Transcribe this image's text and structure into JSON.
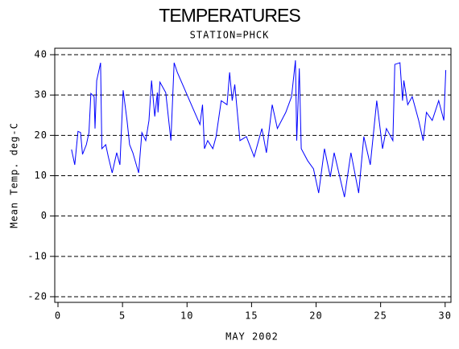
{
  "chart_data": {
    "type": "line",
    "title": "TEMPERATURES",
    "subtitle": "STATION=PHCK",
    "x_label": "MAY 2002",
    "y_label": "Mean Temp. deg-C",
    "xlim": [
      -0.25,
      30.45
    ],
    "ylim": [
      -21.4,
      41.6
    ],
    "xticks": [
      0,
      5,
      10,
      15,
      20,
      25,
      30
    ],
    "yticks": [
      40,
      30,
      20,
      10,
      0,
      -10,
      -20
    ],
    "grid": true,
    "series": [
      {
        "color": "#0000ff",
        "x": [
          1.05,
          1.3,
          1.55,
          1.75,
          1.9,
          2.2,
          2.4,
          2.55,
          2.8,
          2.87,
          3.0,
          3.3,
          3.4,
          3.7,
          3.9,
          4.2,
          4.55,
          4.8,
          5.05,
          5.35,
          5.55,
          5.8,
          6.25,
          6.5,
          6.8,
          7.05,
          7.25,
          7.5,
          7.7,
          7.75,
          7.9,
          8.35,
          8.75,
          9.0,
          9.25,
          11.0,
          11.2,
          11.35,
          11.6,
          12.0,
          12.25,
          12.65,
          13.1,
          13.3,
          13.5,
          13.7,
          14.1,
          14.6,
          15.2,
          15.8,
          16.15,
          16.6,
          17.0,
          17.65,
          18.1,
          18.4,
          18.5,
          18.7,
          18.85,
          19.35,
          19.8,
          20.2,
          20.65,
          21.1,
          21.4,
          22.2,
          22.7,
          23.3,
          23.7,
          24.2,
          24.7,
          25.15,
          25.45,
          25.95,
          26.1,
          26.5,
          26.7,
          26.8,
          27.1,
          27.45,
          27.95,
          28.3,
          28.55,
          29.0,
          29.5,
          29.9,
          30.05
        ],
        "values": [
          16.5,
          12.7,
          21.0,
          20.7,
          15.3,
          17.7,
          20.7,
          30.4,
          29.6,
          21.7,
          33.6,
          38.0,
          16.7,
          17.7,
          14.7,
          10.7,
          15.7,
          12.7,
          31.2,
          23.7,
          17.7,
          15.7,
          10.7,
          20.7,
          18.7,
          23.7,
          33.6,
          24.7,
          30.6,
          25.7,
          33.2,
          30.6,
          18.7,
          38.0,
          35.6,
          22.7,
          27.6,
          16.7,
          18.7,
          16.7,
          19.7,
          28.6,
          27.6,
          35.6,
          28.6,
          32.6,
          18.7,
          19.7,
          14.7,
          21.7,
          15.7,
          27.6,
          21.7,
          25.7,
          29.6,
          38.6,
          18.7,
          36.6,
          16.7,
          13.7,
          11.7,
          5.7,
          16.7,
          9.7,
          15.7,
          4.7,
          15.7,
          5.7,
          19.7,
          12.7,
          28.6,
          16.7,
          21.7,
          18.7,
          37.6,
          38.0,
          28.6,
          33.6,
          27.6,
          29.6,
          23.7,
          18.7,
          25.7,
          23.7,
          28.6,
          23.7,
          36.2
        ]
      }
    ]
  }
}
